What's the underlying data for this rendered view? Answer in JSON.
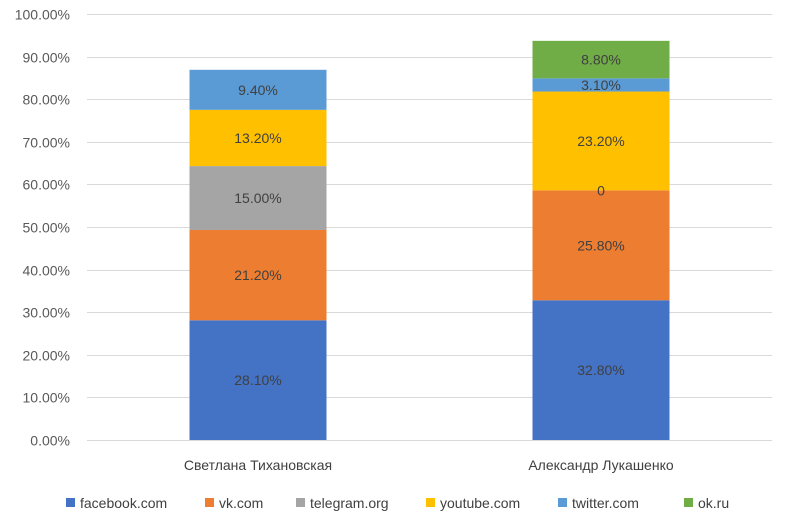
{
  "chart_data": {
    "type": "bar",
    "stacked": true,
    "categories": [
      "Светлана Тихановская",
      "Александр Лукашенко"
    ],
    "series": [
      {
        "name": "facebook.com",
        "color": "#4472C4",
        "values": [
          28.1,
          32.8
        ],
        "labels": [
          "28.10%",
          "32.80%"
        ]
      },
      {
        "name": "vk.com",
        "color": "#ED7D31",
        "values": [
          21.2,
          25.8
        ],
        "labels": [
          "21.20%",
          "25.80%"
        ]
      },
      {
        "name": "telegram.org",
        "color": "#A5A5A5",
        "values": [
          15.0,
          0
        ],
        "labels": [
          "15.00%",
          "0"
        ]
      },
      {
        "name": "youtube.com",
        "color": "#FFC000",
        "values": [
          13.2,
          23.2
        ],
        "labels": [
          "13.20%",
          "23.20%"
        ]
      },
      {
        "name": "twitter.com",
        "color": "#5B9BD5",
        "values": [
          9.4,
          3.1
        ],
        "labels": [
          "9.40%",
          "3.10%"
        ]
      },
      {
        "name": "ok.ru",
        "color": "#70AD47",
        "values": [
          0,
          8.8
        ],
        "labels": [
          "",
          "8.80%"
        ]
      }
    ],
    "ylim": [
      0,
      100
    ],
    "yticks": [
      0,
      10,
      20,
      30,
      40,
      50,
      60,
      70,
      80,
      90,
      100
    ],
    "ytick_labels": [
      "0.00%",
      "10.00%",
      "20.00%",
      "30.00%",
      "40.00%",
      "50.00%",
      "60.00%",
      "70.00%",
      "80.00%",
      "90.00%",
      "100.00%"
    ],
    "grid": true,
    "legend_position": "bottom"
  }
}
